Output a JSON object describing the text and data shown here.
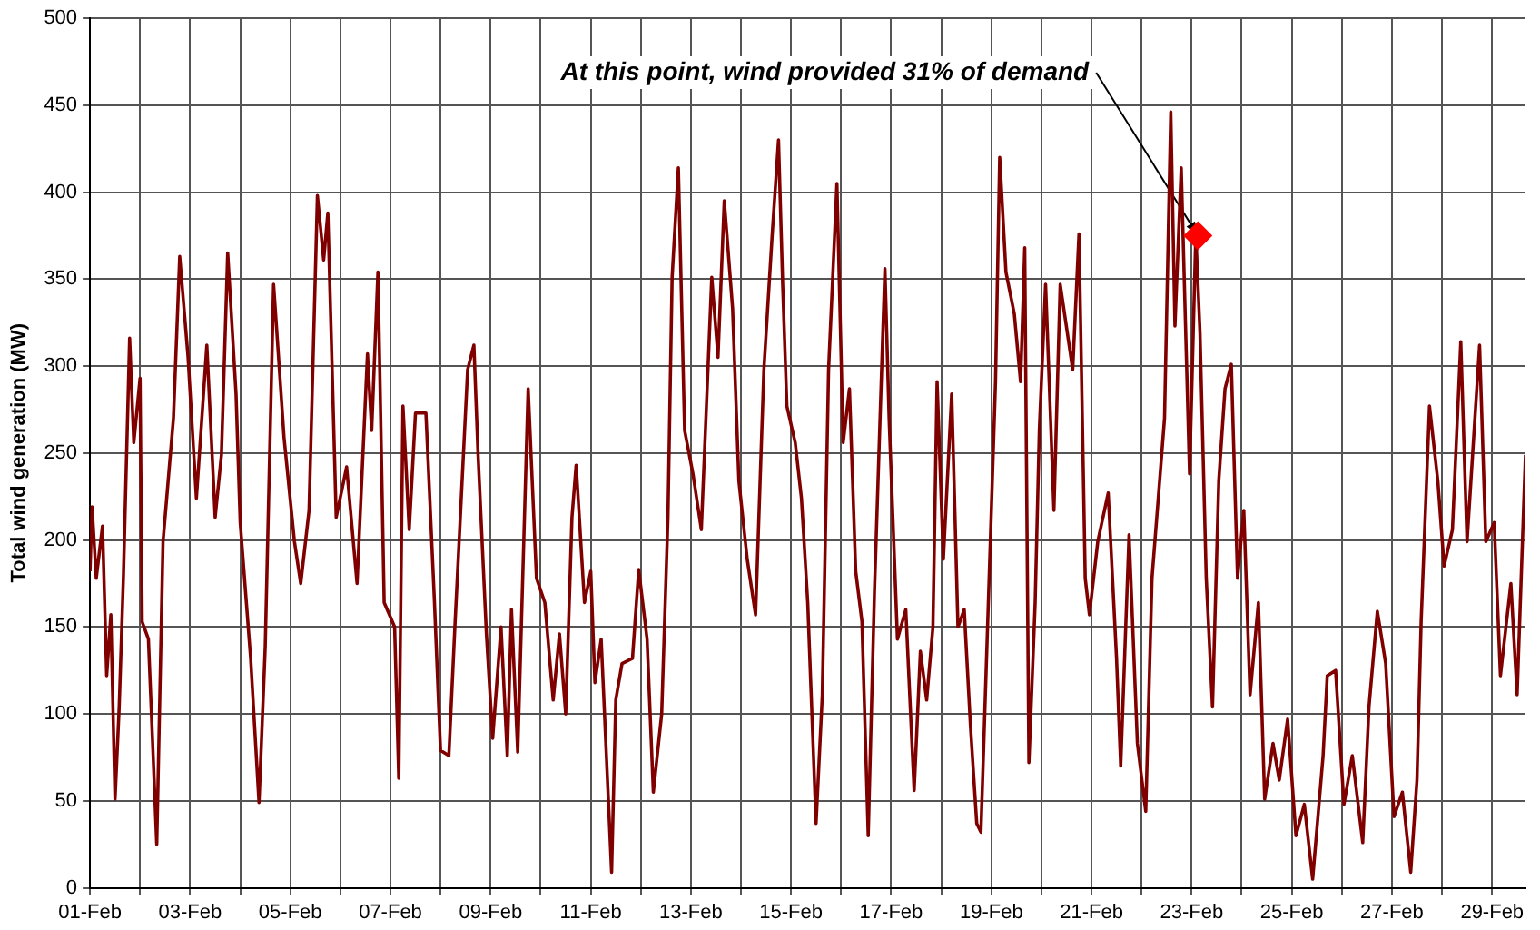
{
  "chart_data": {
    "type": "line",
    "ylabel": "Total wind generation (MW)",
    "ylim": [
      0,
      500
    ],
    "yticks": [
      0,
      50,
      100,
      150,
      200,
      250,
      300,
      350,
      400,
      450,
      500
    ],
    "xlim": [
      "--02-01T00:00",
      "--02-29T16:00"
    ],
    "xticks": [
      {
        "value": "--02-01",
        "label": "01-Feb"
      },
      {
        "value": "--02-02",
        "label": null
      },
      {
        "value": "--02-03",
        "label": "03-Feb"
      },
      {
        "value": "--02-04",
        "label": null
      },
      {
        "value": "--02-05",
        "label": "05-Feb"
      },
      {
        "value": "--02-06",
        "label": null
      },
      {
        "value": "--02-07",
        "label": "07-Feb"
      },
      {
        "value": "--02-08",
        "label": null
      },
      {
        "value": "--02-09",
        "label": "09-Feb"
      },
      {
        "value": "--02-10",
        "label": null
      },
      {
        "value": "--02-11",
        "label": "11-Feb"
      },
      {
        "value": "--02-12",
        "label": null
      },
      {
        "value": "--02-13",
        "label": "13-Feb"
      },
      {
        "value": "--02-14",
        "label": null
      },
      {
        "value": "--02-15",
        "label": "15-Feb"
      },
      {
        "value": "--02-16",
        "label": null
      },
      {
        "value": "--02-17",
        "label": "17-Feb"
      },
      {
        "value": "--02-18",
        "label": null
      },
      {
        "value": "--02-19",
        "label": "19-Feb"
      },
      {
        "value": "--02-20",
        "label": null
      },
      {
        "value": "--02-21",
        "label": "21-Feb"
      },
      {
        "value": "--02-22",
        "label": null
      },
      {
        "value": "--02-23",
        "label": "23-Feb"
      },
      {
        "value": "--02-24",
        "label": null
      },
      {
        "value": "--02-25",
        "label": "25-Feb"
      },
      {
        "value": "--02-26",
        "label": null
      },
      {
        "value": "--02-27",
        "label": "27-Feb"
      },
      {
        "value": "--02-28",
        "label": null
      },
      {
        "value": "--02-29",
        "label": "29-Feb"
      }
    ],
    "grid": true,
    "legend": false,
    "line_style": "solid",
    "annotations": [
      {
        "text": "At this point, wind provided 31% of demand",
        "x": "--02-23T03:00",
        "y": 375
      }
    ],
    "series": [
      {
        "type": "line",
        "color": "#800000",
        "marker": "none",
        "x": [
          "--02-01T00:00",
          "--02-01T01:00",
          "--02-01T03:00",
          "--02-01T06:00",
          "--02-01T08:00",
          "--02-01T10:00",
          "--02-01T12:00",
          "--02-01T14:00",
          "--02-01T16:00",
          "--02-01T19:00",
          "--02-01T21:00",
          "--02-02T00:00",
          "--02-02T01:00",
          "--02-02T04:00",
          "--02-02T08:00",
          "--02-02T11:00",
          "--02-02T16:00",
          "--02-02T19:00",
          "--02-02T23:00",
          "--02-03T03:00",
          "--02-03T08:00",
          "--02-03T12:00",
          "--02-03T15:00",
          "--02-03T18:00",
          "--02-03T22:00",
          "--02-04T00:00",
          "--02-04T05:00",
          "--02-04T09:00",
          "--02-04T12:00",
          "--02-04T16:00",
          "--02-04T21:00",
          "--02-05T02:00",
          "--02-05T05:00",
          "--02-05T09:00",
          "--02-05T13:00",
          "--02-05T16:00",
          "--02-05T18:00",
          "--02-05T22:00",
          "--02-06T03:00",
          "--02-06T08:00",
          "--02-06T13:00",
          "--02-06T15:00",
          "--02-06T18:00",
          "--02-06T21:00",
          "--02-07T02:00",
          "--02-07T04:00",
          "--02-07T06:00",
          "--02-07T09:00",
          "--02-07T12:00",
          "--02-07T17:00",
          "--02-07T21:00",
          "--02-08T00:00",
          "--02-08T04:00",
          "--02-08T07:00",
          "--02-08T13:00",
          "--02-08T16:00",
          "--02-08T18:00",
          "--02-08T22:00",
          "--02-09T01:00",
          "--02-09T05:00",
          "--02-09T08:00",
          "--02-09T10:00",
          "--02-09T13:00",
          "--02-09T18:00",
          "--02-09T22:00",
          "--02-10T02:00",
          "--02-10T06:00",
          "--02-10T09:00",
          "--02-10T12:00",
          "--02-10T15:00",
          "--02-10T17:00",
          "--02-10T21:00",
          "--02-11T00:00",
          "--02-11T02:00",
          "--02-11T05:00",
          "--02-11T10:00",
          "--02-11T12:00",
          "--02-11T15:00",
          "--02-11T20:00",
          "--02-11T23:00",
          "--02-12T03:00",
          "--02-12T06:00",
          "--02-12T10:00",
          "--02-12T13:00",
          "--02-12T15:00",
          "--02-12T18:00",
          "--02-12T21:00",
          "--02-13T01:00",
          "--02-13T05:00",
          "--02-13T10:00",
          "--02-13T13:00",
          "--02-13T16:00",
          "--02-13T20:00",
          "--02-13T23:00",
          "--02-14T03:00",
          "--02-14T07:00",
          "--02-14T11:00",
          "--02-14T15:00",
          "--02-14T18:00",
          "--02-14T20:00",
          "--02-14T22:00",
          "--02-15T02:00",
          "--02-15T05:00",
          "--02-15T08:00",
          "--02-15T12:00",
          "--02-15T15:00",
          "--02-15T18:00",
          "--02-15T22:00",
          "--02-16T01:00",
          "--02-16T04:00",
          "--02-16T07:00",
          "--02-16T10:00",
          "--02-16T13:00",
          "--02-16T16:00",
          "--02-16T21:00",
          "--02-16T23:00",
          "--02-17T03:00",
          "--02-17T07:00",
          "--02-17T11:00",
          "--02-17T14:00",
          "--02-17T17:00",
          "--02-17T20:00",
          "--02-17T22:00",
          "--02-18T01:00",
          "--02-18T05:00",
          "--02-18T08:00",
          "--02-18T11:00",
          "--02-18T14:00",
          "--02-18T17:00",
          "--02-18T19:00",
          "--02-18T22:00",
          "--02-19T02:00",
          "--02-19T04:00",
          "--02-19T07:00",
          "--02-19T11:00",
          "--02-19T14:00",
          "--02-19T16:00",
          "--02-19T18:00",
          "--02-19T21:00",
          "--02-19T23:00",
          "--02-20T02:00",
          "--02-20T06:00",
          "--02-20T09:00",
          "--02-20T15:00",
          "--02-20T18:00",
          "--02-20T21:00",
          "--02-20T23:00",
          "--02-21T03:00",
          "--02-21T08:00",
          "--02-21T12:00",
          "--02-21T14:00",
          "--02-21T18:00",
          "--02-21T22:00",
          "--02-22T02:00",
          "--02-22T05:00",
          "--02-22T11:00",
          "--02-22T14:00",
          "--02-22T16:00",
          "--02-22T19:00",
          "--02-22T23:00",
          "--02-23T02:00",
          "--02-23T04:00",
          "--02-23T07:00",
          "--02-23T10:00",
          "--02-23T13:00",
          "--02-23T16:00",
          "--02-23T19:00",
          "--02-23T22:00",
          "--02-24T01:00",
          "--02-24T04:00",
          "--02-24T08:00",
          "--02-24T11:00",
          "--02-24T15:00",
          "--02-24T18:00",
          "--02-24T22:00",
          "--02-25T02:00",
          "--02-25T06:00",
          "--02-25T10:00",
          "--02-25T15:00",
          "--02-25T17:00",
          "--02-25T21:00",
          "--02-26T01:00",
          "--02-26T05:00",
          "--02-26T10:00",
          "--02-26T13:00",
          "--02-26T17:00",
          "--02-26T21:00",
          "--02-27T01:00",
          "--02-27T05:00",
          "--02-27T09:00",
          "--02-27T12:00",
          "--02-27T14:00",
          "--02-27T18:00",
          "--02-27T22:00",
          "--02-28T01:00",
          "--02-28T05:00",
          "--02-28T09:00",
          "--02-28T12:00",
          "--02-28T18:00",
          "--02-28T21:00",
          "--02-29T01:00",
          "--02-29T04:00",
          "--02-29T09:00",
          "--02-29T12:00",
          "--02-29T16:00"
        ],
        "values": [
          182,
          219,
          178,
          208,
          122,
          157,
          51,
          104,
          178,
          316,
          256,
          293,
          153,
          143,
          25,
          199,
          270,
          363,
          305,
          224,
          312,
          213,
          249,
          365,
          284,
          210,
          132,
          49,
          139,
          347,
          259,
          199,
          175,
          217,
          398,
          361,
          388,
          213,
          242,
          175,
          307,
          263,
          354,
          164,
          150,
          63,
          277,
          206,
          273,
          273,
          167,
          79,
          76,
          153,
          298,
          312,
          249,
          146,
          86,
          150,
          76,
          160,
          78,
          287,
          178,
          164,
          108,
          146,
          100,
          213,
          243,
          164,
          182,
          118,
          143,
          9,
          108,
          129,
          132,
          183,
          143,
          55,
          100,
          213,
          351,
          414,
          263,
          238,
          206,
          351,
          305,
          395,
          333,
          234,
          189,
          157,
          298,
          376,
          430,
          347,
          277,
          256,
          224,
          164,
          37,
          111,
          298,
          405,
          256,
          287,
          182,
          153,
          30,
          171,
          356,
          270,
          143,
          160,
          56,
          136,
          108,
          150,
          291,
          189,
          284,
          150,
          160,
          93,
          37,
          32,
          143,
          291,
          420,
          354,
          330,
          291,
          368,
          72,
          164,
          263,
          347,
          217,
          347,
          298,
          376,
          178,
          157,
          199,
          227,
          132,
          70,
          203,
          83,
          44,
          178,
          270,
          446,
          323,
          414,
          238,
          376,
          319,
          178,
          104,
          234,
          287,
          301,
          178,
          217,
          111,
          164,
          51,
          83,
          62,
          97,
          30,
          48,
          5,
          76,
          122,
          125,
          48,
          76,
          26,
          104,
          159,
          129,
          41,
          55,
          9,
          62,
          153,
          277,
          234,
          185,
          206,
          314,
          199,
          312,
          199,
          210,
          122,
          175,
          111,
          249
        ]
      },
      {
        "type": "scatter",
        "color": "#ff0000",
        "marker": "diamond",
        "x": [
          "--02-23T03:00"
        ],
        "values": [
          375
        ]
      }
    ]
  }
}
